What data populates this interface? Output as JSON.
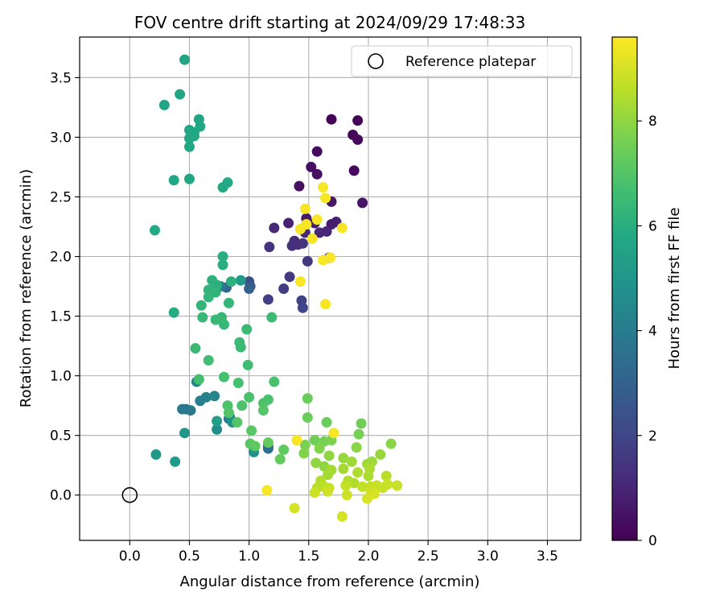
{
  "chart_data": {
    "type": "scatter",
    "title": "FOV centre drift starting at 2024/09/29 17:48:33",
    "xlabel": "Angular distance from reference (arcmin)",
    "ylabel": "Rotation from reference (arcmin)",
    "xlim": [
      -0.42,
      3.78
    ],
    "ylim": [
      -0.38,
      3.84
    ],
    "xticks": [
      "0.0",
      "0.5",
      "1.0",
      "1.5",
      "2.0",
      "2.5",
      "3.0",
      "3.5"
    ],
    "yticks": [
      "0.0",
      "0.5",
      "1.0",
      "1.5",
      "2.0",
      "2.5",
      "3.0",
      "3.5"
    ],
    "grid": true,
    "legend": {
      "location": "top-right",
      "entries": [
        "Reference platepar"
      ]
    },
    "reference_point": {
      "x": 0,
      "y": 0
    },
    "colorbar": {
      "label": "Hours from first FF file",
      "range": [
        0,
        9.6
      ],
      "ticks": [
        "0",
        "2",
        "4",
        "6",
        "8"
      ],
      "colormap": "viridis"
    },
    "points": [
      {
        "x": 1.69,
        "y": 3.15,
        "h": 0.05
      },
      {
        "x": 1.91,
        "y": 3.14,
        "h": 0.1
      },
      {
        "x": 1.87,
        "y": 3.02,
        "h": 0.15
      },
      {
        "x": 1.91,
        "y": 2.98,
        "h": 0.2
      },
      {
        "x": 1.57,
        "y": 2.88,
        "h": 0.3
      },
      {
        "x": 1.52,
        "y": 2.75,
        "h": 0.35
      },
      {
        "x": 1.88,
        "y": 2.72,
        "h": 0.25
      },
      {
        "x": 1.57,
        "y": 2.69,
        "h": 0.4
      },
      {
        "x": 1.42,
        "y": 2.59,
        "h": 0.45
      },
      {
        "x": 1.95,
        "y": 2.45,
        "h": 0.5
      },
      {
        "x": 1.69,
        "y": 2.46,
        "h": 0.6
      },
      {
        "x": 1.48,
        "y": 2.32,
        "h": 0.7
      },
      {
        "x": 1.55,
        "y": 2.28,
        "h": 0.75
      },
      {
        "x": 1.69,
        "y": 2.27,
        "h": 0.8
      },
      {
        "x": 1.73,
        "y": 2.29,
        "h": 0.85
      },
      {
        "x": 1.33,
        "y": 2.28,
        "h": 0.9
      },
      {
        "x": 1.65,
        "y": 2.21,
        "h": 1.0
      },
      {
        "x": 1.59,
        "y": 2.2,
        "h": 1.05
      },
      {
        "x": 1.21,
        "y": 2.24,
        "h": 1.1
      },
      {
        "x": 1.47,
        "y": 2.2,
        "h": 1.15
      },
      {
        "x": 1.38,
        "y": 2.13,
        "h": 1.2
      },
      {
        "x": 1.41,
        "y": 2.1,
        "h": 1.3
      },
      {
        "x": 1.36,
        "y": 2.09,
        "h": 1.35
      },
      {
        "x": 1.45,
        "y": 2.11,
        "h": 1.4
      },
      {
        "x": 1.17,
        "y": 2.08,
        "h": 1.45
      },
      {
        "x": 1.49,
        "y": 1.96,
        "h": 1.5
      },
      {
        "x": 1.67,
        "y": 1.99,
        "h": 1.55
      },
      {
        "x": 1.34,
        "y": 1.83,
        "h": 1.6
      },
      {
        "x": 1.29,
        "y": 1.73,
        "h": 1.7
      },
      {
        "x": 1.16,
        "y": 1.64,
        "h": 1.8
      },
      {
        "x": 1.44,
        "y": 1.63,
        "h": 1.9
      },
      {
        "x": 1.45,
        "y": 1.57,
        "h": 2.0
      },
      {
        "x": 1.0,
        "y": 1.79,
        "h": 2.3
      },
      {
        "x": 1.01,
        "y": 1.75,
        "h": 2.6
      },
      {
        "x": 1.0,
        "y": 1.73,
        "h": 3.0
      },
      {
        "x": 0.81,
        "y": 1.74,
        "h": 3.2
      },
      {
        "x": 1.16,
        "y": 0.41,
        "h": 3.2
      },
      {
        "x": 1.16,
        "y": 0.39,
        "h": 3.4
      },
      {
        "x": 0.83,
        "y": 0.64,
        "h": 3.5
      },
      {
        "x": 0.47,
        "y": 0.72,
        "h": 3.6
      },
      {
        "x": 0.51,
        "y": 0.71,
        "h": 3.8
      },
      {
        "x": 0.44,
        "y": 0.72,
        "h": 3.9
      },
      {
        "x": 0.76,
        "y": 1.75,
        "h": 4.0
      },
      {
        "x": 0.59,
        "y": 0.79,
        "h": 4.1
      },
      {
        "x": 0.64,
        "y": 0.82,
        "h": 4.2
      },
      {
        "x": 0.71,
        "y": 0.83,
        "h": 4.3
      },
      {
        "x": 0.56,
        "y": 0.95,
        "h": 4.4
      },
      {
        "x": 0.84,
        "y": 0.65,
        "h": 4.5
      },
      {
        "x": 0.73,
        "y": 0.55,
        "h": 4.7
      },
      {
        "x": 0.86,
        "y": 0.61,
        "h": 4.8
      },
      {
        "x": 1.04,
        "y": 0.36,
        "h": 4.9
      },
      {
        "x": 0.46,
        "y": 0.52,
        "h": 5.0
      },
      {
        "x": 0.22,
        "y": 0.34,
        "h": 5.1
      },
      {
        "x": 0.38,
        "y": 0.28,
        "h": 5.2
      },
      {
        "x": 0.73,
        "y": 0.62,
        "h": 5.3
      },
      {
        "x": 0.93,
        "y": 1.8,
        "h": 5.2
      },
      {
        "x": 0.46,
        "y": 3.65,
        "h": 5.6
      },
      {
        "x": 0.42,
        "y": 3.36,
        "h": 5.6
      },
      {
        "x": 0.29,
        "y": 3.27,
        "h": 5.6
      },
      {
        "x": 0.58,
        "y": 3.15,
        "h": 5.6
      },
      {
        "x": 0.5,
        "y": 3.06,
        "h": 5.7
      },
      {
        "x": 0.54,
        "y": 3.04,
        "h": 5.7
      },
      {
        "x": 0.59,
        "y": 3.09,
        "h": 5.7
      },
      {
        "x": 0.54,
        "y": 3.01,
        "h": 5.7
      },
      {
        "x": 0.5,
        "y": 2.99,
        "h": 5.7
      },
      {
        "x": 0.5,
        "y": 2.92,
        "h": 5.7
      },
      {
        "x": 0.37,
        "y": 2.64,
        "h": 5.7
      },
      {
        "x": 0.5,
        "y": 2.65,
        "h": 5.7
      },
      {
        "x": 0.82,
        "y": 2.62,
        "h": 5.8
      },
      {
        "x": 0.78,
        "y": 2.58,
        "h": 5.8
      },
      {
        "x": 0.21,
        "y": 2.22,
        "h": 5.8
      },
      {
        "x": 0.37,
        "y": 1.53,
        "h": 5.9
      },
      {
        "x": 0.78,
        "y": 2.0,
        "h": 6.0
      },
      {
        "x": 0.78,
        "y": 1.93,
        "h": 6.0
      },
      {
        "x": 0.69,
        "y": 1.8,
        "h": 6.1
      },
      {
        "x": 0.73,
        "y": 1.76,
        "h": 6.1
      },
      {
        "x": 0.85,
        "y": 1.79,
        "h": 6.1
      },
      {
        "x": 0.66,
        "y": 1.72,
        "h": 6.2
      },
      {
        "x": 0.72,
        "y": 1.7,
        "h": 6.2
      },
      {
        "x": 0.66,
        "y": 1.66,
        "h": 6.3
      },
      {
        "x": 0.6,
        "y": 1.59,
        "h": 6.3
      },
      {
        "x": 0.83,
        "y": 1.61,
        "h": 6.3
      },
      {
        "x": 0.61,
        "y": 1.49,
        "h": 6.4
      },
      {
        "x": 0.72,
        "y": 1.47,
        "h": 6.4
      },
      {
        "x": 0.77,
        "y": 1.49,
        "h": 6.4
      },
      {
        "x": 0.79,
        "y": 1.43,
        "h": 6.4
      },
      {
        "x": 1.19,
        "y": 1.49,
        "h": 6.5
      },
      {
        "x": 0.98,
        "y": 1.39,
        "h": 6.5
      },
      {
        "x": 0.55,
        "y": 1.23,
        "h": 6.5
      },
      {
        "x": 0.92,
        "y": 1.28,
        "h": 6.5
      },
      {
        "x": 0.93,
        "y": 1.24,
        "h": 6.5
      },
      {
        "x": 0.66,
        "y": 1.13,
        "h": 6.6
      },
      {
        "x": 0.99,
        "y": 1.09,
        "h": 6.6
      },
      {
        "x": 0.58,
        "y": 0.97,
        "h": 6.7
      },
      {
        "x": 0.79,
        "y": 0.99,
        "h": 6.7
      },
      {
        "x": 0.91,
        "y": 0.94,
        "h": 6.7
      },
      {
        "x": 1.21,
        "y": 0.95,
        "h": 6.8
      },
      {
        "x": 1.0,
        "y": 0.82,
        "h": 6.8
      },
      {
        "x": 1.16,
        "y": 0.8,
        "h": 6.8
      },
      {
        "x": 1.12,
        "y": 0.77,
        "h": 6.9
      },
      {
        "x": 0.82,
        "y": 0.75,
        "h": 6.9
      },
      {
        "x": 0.94,
        "y": 0.75,
        "h": 6.9
      },
      {
        "x": 1.12,
        "y": 0.71,
        "h": 7.0
      },
      {
        "x": 0.83,
        "y": 0.69,
        "h": 7.0
      },
      {
        "x": 0.9,
        "y": 0.61,
        "h": 7.0
      },
      {
        "x": 1.02,
        "y": 0.54,
        "h": 7.1
      },
      {
        "x": 1.01,
        "y": 0.43,
        "h": 7.1
      },
      {
        "x": 1.05,
        "y": 0.41,
        "h": 7.2
      },
      {
        "x": 1.29,
        "y": 0.38,
        "h": 7.2
      },
      {
        "x": 1.26,
        "y": 0.3,
        "h": 7.3
      },
      {
        "x": 1.16,
        "y": 0.44,
        "h": 7.3
      },
      {
        "x": 1.49,
        "y": 0.81,
        "h": 7.4
      },
      {
        "x": 1.49,
        "y": 0.65,
        "h": 7.4
      },
      {
        "x": 1.65,
        "y": 0.61,
        "h": 7.4
      },
      {
        "x": 1.94,
        "y": 0.6,
        "h": 7.5
      },
      {
        "x": 1.92,
        "y": 0.51,
        "h": 7.6
      },
      {
        "x": 1.55,
        "y": 0.46,
        "h": 7.5
      },
      {
        "x": 1.63,
        "y": 0.45,
        "h": 7.6
      },
      {
        "x": 1.69,
        "y": 0.46,
        "h": 7.7
      },
      {
        "x": 1.47,
        "y": 0.42,
        "h": 7.7
      },
      {
        "x": 1.59,
        "y": 0.39,
        "h": 7.8
      },
      {
        "x": 1.46,
        "y": 0.35,
        "h": 7.8
      },
      {
        "x": 1.9,
        "y": 0.4,
        "h": 7.9
      },
      {
        "x": 2.19,
        "y": 0.43,
        "h": 7.9
      },
      {
        "x": 1.67,
        "y": 0.33,
        "h": 8.0
      },
      {
        "x": 1.56,
        "y": 0.27,
        "h": 8.0
      },
      {
        "x": 1.63,
        "y": 0.24,
        "h": 8.0
      },
      {
        "x": 1.79,
        "y": 0.31,
        "h": 8.1
      },
      {
        "x": 2.1,
        "y": 0.34,
        "h": 8.1
      },
      {
        "x": 1.86,
        "y": 0.28,
        "h": 8.2
      },
      {
        "x": 1.99,
        "y": 0.26,
        "h": 8.2
      },
      {
        "x": 2.03,
        "y": 0.28,
        "h": 8.2
      },
      {
        "x": 1.69,
        "y": 0.21,
        "h": 8.3
      },
      {
        "x": 1.66,
        "y": 0.17,
        "h": 8.3
      },
      {
        "x": 1.79,
        "y": 0.22,
        "h": 8.3
      },
      {
        "x": 1.91,
        "y": 0.19,
        "h": 8.4
      },
      {
        "x": 2.01,
        "y": 0.22,
        "h": 8.4
      },
      {
        "x": 2.0,
        "y": 0.16,
        "h": 8.4
      },
      {
        "x": 1.6,
        "y": 0.12,
        "h": 8.5
      },
      {
        "x": 1.83,
        "y": 0.12,
        "h": 8.5
      },
      {
        "x": 1.88,
        "y": 0.1,
        "h": 8.5
      },
      {
        "x": 2.15,
        "y": 0.16,
        "h": 8.6
      },
      {
        "x": 1.57,
        "y": 0.06,
        "h": 8.6
      },
      {
        "x": 1.63,
        "y": 0.07,
        "h": 8.6
      },
      {
        "x": 1.67,
        "y": 0.06,
        "h": 8.7
      },
      {
        "x": 1.81,
        "y": 0.08,
        "h": 8.7
      },
      {
        "x": 1.95,
        "y": 0.07,
        "h": 8.7
      },
      {
        "x": 2.02,
        "y": 0.07,
        "h": 8.7
      },
      {
        "x": 2.07,
        "y": 0.08,
        "h": 8.8
      },
      {
        "x": 2.16,
        "y": 0.09,
        "h": 8.8
      },
      {
        "x": 2.24,
        "y": 0.08,
        "h": 8.8
      },
      {
        "x": 2.12,
        "y": 0.06,
        "h": 8.8
      },
      {
        "x": 1.55,
        "y": 0.02,
        "h": 8.9
      },
      {
        "x": 1.66,
        "y": 0.03,
        "h": 8.9
      },
      {
        "x": 1.82,
        "y": 0.0,
        "h": 8.9
      },
      {
        "x": 2.02,
        "y": 0.03,
        "h": 8.9
      },
      {
        "x": 2.05,
        "y": 0.01,
        "h": 9.0
      },
      {
        "x": 1.99,
        "y": -0.03,
        "h": 9.0
      },
      {
        "x": 1.38,
        "y": -0.11,
        "h": 9.0
      },
      {
        "x": 1.78,
        "y": -0.18,
        "h": 9.0
      },
      {
        "x": 1.15,
        "y": 0.04,
        "h": 9.5
      },
      {
        "x": 1.4,
        "y": 0.46,
        "h": 9.5
      },
      {
        "x": 1.71,
        "y": 0.52,
        "h": 9.5
      },
      {
        "x": 1.47,
        "y": 2.4,
        "h": 9.5
      },
      {
        "x": 1.62,
        "y": 2.58,
        "h": 9.5
      },
      {
        "x": 1.64,
        "y": 2.49,
        "h": 9.5
      },
      {
        "x": 1.57,
        "y": 2.31,
        "h": 9.5
      },
      {
        "x": 1.48,
        "y": 2.27,
        "h": 9.5
      },
      {
        "x": 1.43,
        "y": 2.23,
        "h": 9.5
      },
      {
        "x": 1.78,
        "y": 2.24,
        "h": 9.5
      },
      {
        "x": 1.53,
        "y": 2.15,
        "h": 9.5
      },
      {
        "x": 1.62,
        "y": 1.97,
        "h": 9.5
      },
      {
        "x": 1.68,
        "y": 1.99,
        "h": 9.5
      },
      {
        "x": 1.43,
        "y": 1.79,
        "h": 9.5
      },
      {
        "x": 1.64,
        "y": 1.6,
        "h": 9.5
      }
    ]
  }
}
